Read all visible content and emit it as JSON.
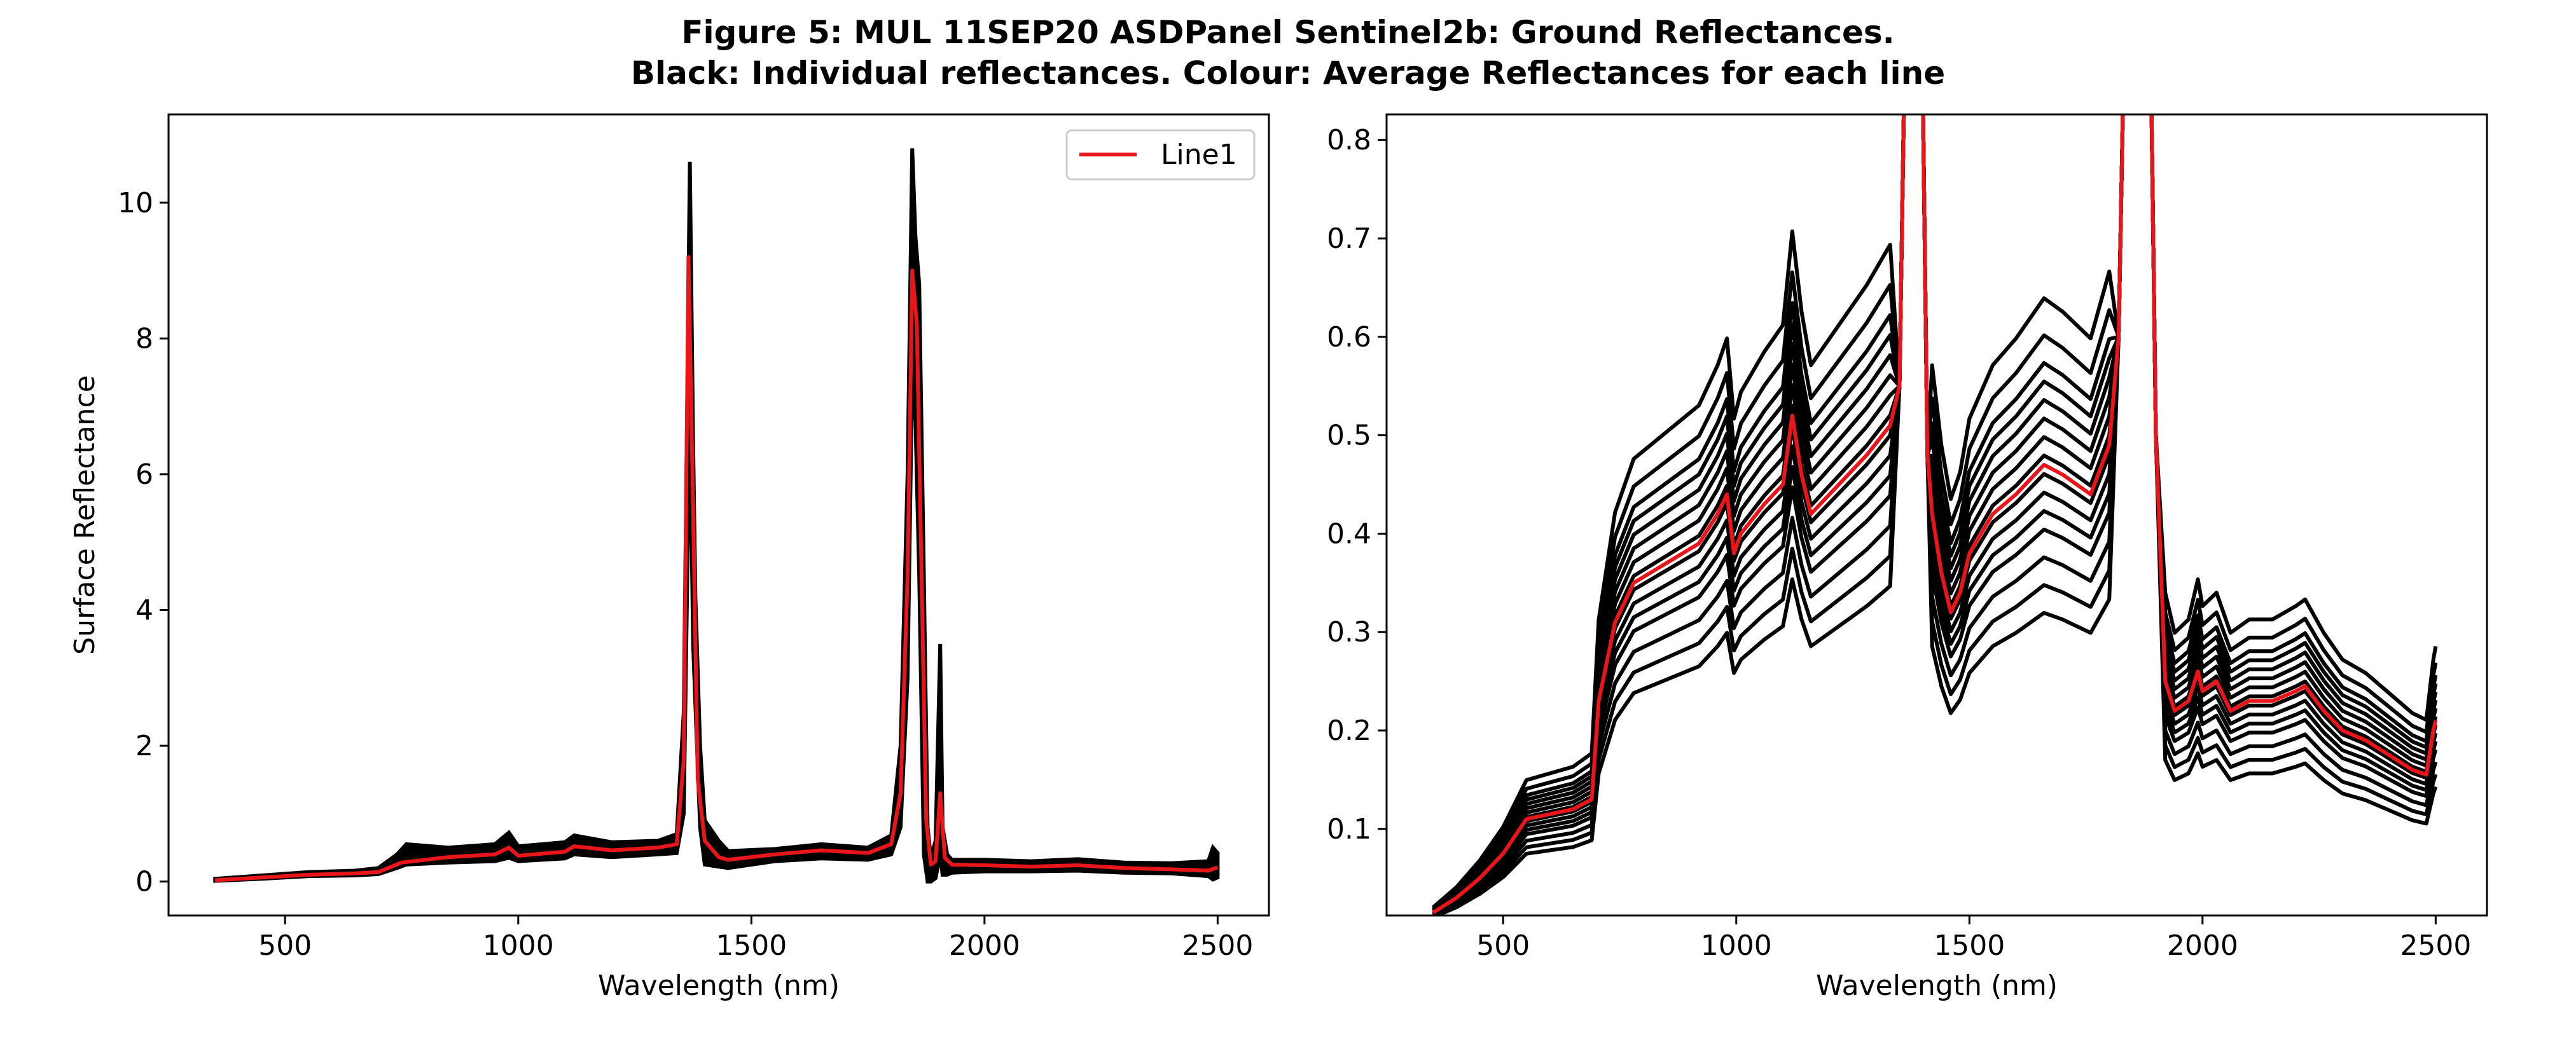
{
  "figure": {
    "title_line1": "Figure 5: MUL 11SEP20 ASDPanel Sentinel2b: Ground Reflectances.",
    "title_line2": "Black: Individual reflectances. Colour: Average Reflectances for each line"
  },
  "colors": {
    "individual": "#000000",
    "average": "#e8161b"
  },
  "chart_data": [
    {
      "type": "line",
      "xlabel": "Wavelength (nm)",
      "ylabel": "Surface Reflectance",
      "xlim": [
        250,
        2610
      ],
      "ylim": [
        -0.5,
        11.3
      ],
      "xticks": [
        500,
        1000,
        1500,
        2000,
        2500
      ],
      "yticks": [
        0,
        2,
        4,
        6,
        8,
        10
      ],
      "legend": {
        "placement": "top-right",
        "entries": [
          "Line1"
        ]
      },
      "series": [
        {
          "name": "Line1",
          "color": "#e8161b",
          "x": [
            350,
            450,
            550,
            650,
            700,
            750,
            850,
            950,
            980,
            1000,
            1100,
            1120,
            1200,
            1300,
            1340,
            1355,
            1365,
            1375,
            1385,
            1400,
            1430,
            1450,
            1550,
            1650,
            1750,
            1800,
            1820,
            1835,
            1845,
            1855,
            1865,
            1875,
            1885,
            1895,
            1905,
            1915,
            1930,
            2000,
            2100,
            2200,
            2300,
            2400,
            2480,
            2500
          ],
          "y": [
            0.02,
            0.06,
            0.1,
            0.12,
            0.14,
            0.28,
            0.36,
            0.4,
            0.5,
            0.38,
            0.44,
            0.52,
            0.46,
            0.5,
            0.55,
            1.8,
            9.2,
            5.5,
            1.5,
            0.6,
            0.36,
            0.32,
            0.4,
            0.46,
            0.42,
            0.55,
            1.3,
            4.5,
            9.0,
            8.2,
            4.5,
            0.9,
            0.25,
            0.3,
            1.3,
            0.35,
            0.25,
            0.24,
            0.22,
            0.24,
            0.2,
            0.18,
            0.16,
            0.21
          ]
        }
      ],
      "envelope": {
        "x": [
          350,
          450,
          550,
          650,
          700,
          740,
          760,
          850,
          950,
          980,
          1000,
          1100,
          1120,
          1200,
          1300,
          1340,
          1355,
          1368,
          1375,
          1380,
          1390,
          1400,
          1430,
          1450,
          1550,
          1650,
          1750,
          1800,
          1820,
          1835,
          1845,
          1852,
          1860,
          1870,
          1878,
          1885,
          1895,
          1905,
          1910,
          1920,
          1930,
          2000,
          2100,
          2200,
          2300,
          2400,
          2480,
          2490,
          2500
        ],
        "upper": [
          0.04,
          0.09,
          0.14,
          0.16,
          0.2,
          0.4,
          0.55,
          0.5,
          0.55,
          0.72,
          0.52,
          0.58,
          0.68,
          0.58,
          0.6,
          0.7,
          2.5,
          10.6,
          6.5,
          4.2,
          2.0,
          0.9,
          0.6,
          0.45,
          0.48,
          0.55,
          0.5,
          0.68,
          2.0,
          6.0,
          10.8,
          9.5,
          8.8,
          4.5,
          0.8,
          0.35,
          0.6,
          3.5,
          0.8,
          0.4,
          0.32,
          0.32,
          0.3,
          0.33,
          0.28,
          0.27,
          0.3,
          0.5,
          0.42
        ],
        "lower": [
          0.01,
          0.04,
          0.08,
          0.09,
          0.11,
          0.2,
          0.25,
          0.28,
          0.3,
          0.35,
          0.3,
          0.34,
          0.4,
          0.36,
          0.4,
          0.42,
          1.0,
          7.0,
          3.5,
          2.6,
          0.8,
          0.25,
          0.22,
          0.2,
          0.3,
          0.34,
          0.32,
          0.4,
          0.8,
          3.0,
          7.5,
          6.8,
          4.5,
          0.4,
          0.0,
          0.0,
          0.05,
          0.4,
          0.1,
          0.1,
          0.13,
          0.15,
          0.15,
          0.16,
          0.13,
          0.12,
          0.08,
          0.03,
          0.06
        ]
      }
    },
    {
      "type": "line",
      "xlabel": "Wavelength (nm)",
      "ylabel": "",
      "xlim": [
        250,
        2610
      ],
      "ylim": [
        0.012,
        0.826
      ],
      "xticks": [
        500,
        1000,
        1500,
        2000,
        2500
      ],
      "yticks": [
        0.1,
        0.2,
        0.3,
        0.4,
        0.5,
        0.6,
        0.7,
        0.8
      ],
      "series": [
        {
          "name": "",
          "color": "#e8161b",
          "x": [
            350,
            400,
            450,
            500,
            550,
            600,
            650,
            690,
            705,
            740,
            780,
            850,
            920,
            960,
            980,
            995,
            1010,
            1060,
            1100,
            1120,
            1140,
            1160,
            1200,
            1280,
            1330,
            1350,
            1360,
            1400,
            1410,
            1420,
            1440,
            1460,
            1480,
            1500,
            1550,
            1600,
            1660,
            1700,
            1760,
            1800,
            1820,
            1830,
            1890,
            1900,
            1920,
            1940,
            1970,
            1990,
            2000,
            2030,
            2060,
            2100,
            2150,
            2200,
            2220,
            2260,
            2300,
            2350,
            2400,
            2450,
            2480,
            2495,
            2500
          ],
          "y": [
            0.015,
            0.03,
            0.05,
            0.075,
            0.11,
            0.115,
            0.12,
            0.13,
            0.23,
            0.31,
            0.35,
            0.37,
            0.39,
            0.42,
            0.44,
            0.38,
            0.4,
            0.43,
            0.45,
            0.52,
            0.46,
            0.42,
            0.44,
            0.48,
            0.51,
            0.55,
            0.85,
            0.85,
            0.48,
            0.42,
            0.36,
            0.32,
            0.34,
            0.38,
            0.42,
            0.44,
            0.47,
            0.46,
            0.44,
            0.49,
            0.6,
            0.85,
            0.85,
            0.5,
            0.25,
            0.22,
            0.23,
            0.26,
            0.24,
            0.25,
            0.22,
            0.23,
            0.23,
            0.24,
            0.245,
            0.22,
            0.2,
            0.19,
            0.175,
            0.16,
            0.155,
            0.2,
            0.21
          ]
        }
      ],
      "curve_basis": {
        "x": [
          350,
          400,
          450,
          500,
          550,
          600,
          650,
          690,
          705,
          740,
          780,
          850,
          920,
          960,
          980,
          995,
          1010,
          1060,
          1100,
          1120,
          1140,
          1160,
          1200,
          1280,
          1330,
          1350,
          1360,
          1400,
          1410,
          1420,
          1440,
          1460,
          1480,
          1500,
          1550,
          1600,
          1660,
          1700,
          1760,
          1800,
          1820,
          1830,
          1890,
          1900,
          1920,
          1940,
          1970,
          1990,
          2000,
          2030,
          2060,
          2100,
          2150,
          2200,
          2220,
          2260,
          2300,
          2350,
          2400,
          2450,
          2480,
          2495,
          2500
        ],
        "y": [
          0.015,
          0.03,
          0.05,
          0.075,
          0.11,
          0.115,
          0.12,
          0.13,
          0.23,
          0.31,
          0.35,
          0.37,
          0.39,
          0.42,
          0.44,
          0.38,
          0.4,
          0.43,
          0.45,
          0.52,
          0.46,
          0.42,
          0.44,
          0.48,
          0.51,
          0.55,
          0.85,
          0.85,
          0.48,
          0.42,
          0.36,
          0.32,
          0.34,
          0.38,
          0.42,
          0.44,
          0.47,
          0.46,
          0.44,
          0.49,
          0.6,
          0.85,
          0.85,
          0.5,
          0.25,
          0.22,
          0.23,
          0.26,
          0.24,
          0.25,
          0.22,
          0.23,
          0.23,
          0.24,
          0.245,
          0.22,
          0.2,
          0.19,
          0.175,
          0.16,
          0.155,
          0.2,
          0.21
        ],
        "line_scales": [
          0.68,
          0.74,
          0.8,
          0.86,
          0.9,
          0.94,
          0.98,
          1.02,
          1.06,
          1.1,
          1.14,
          1.18,
          1.22,
          1.28,
          1.36
        ]
      }
    }
  ]
}
